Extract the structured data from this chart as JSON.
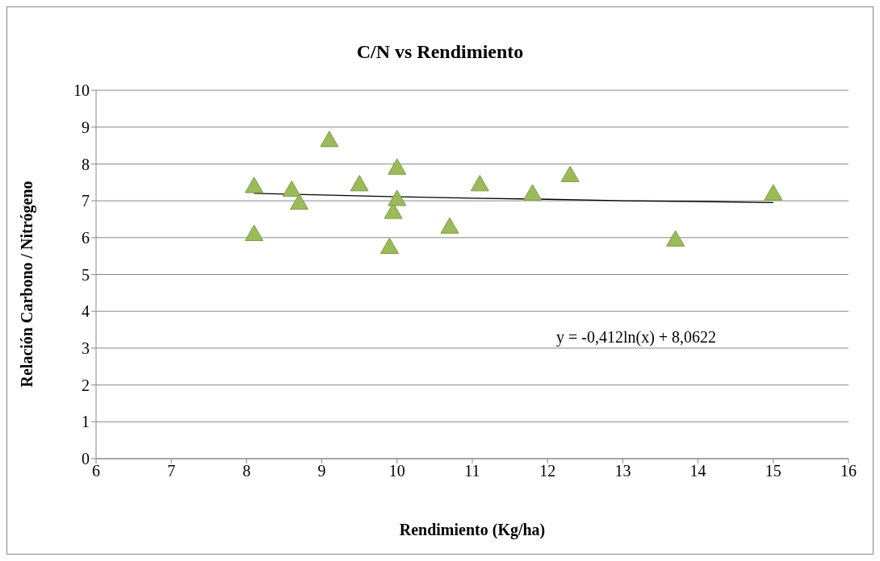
{
  "chart_data": {
    "type": "scatter",
    "title": "C/N vs Rendimiento",
    "xlabel": "Rendimiento (Kg/ha)",
    "ylabel": "Relación Carbono / Nitrógeno",
    "xlim": [
      6,
      16
    ],
    "xticks": [
      6,
      7,
      8,
      9,
      10,
      11,
      12,
      13,
      14,
      15,
      16
    ],
    "ylim": [
      0,
      10
    ],
    "yticks": [
      0,
      1,
      2,
      3,
      4,
      5,
      6,
      7,
      8,
      9,
      10
    ],
    "grid": "y",
    "legend": false,
    "marker": "triangle",
    "series": [
      {
        "color": "#9bbb59",
        "x": [
          8.1,
          8.1,
          8.6,
          8.7,
          9.1,
          9.5,
          9.9,
          9.95,
          10.0,
          10.0,
          10.7,
          11.1,
          11.8,
          12.3,
          13.7,
          15.0
        ],
        "values": [
          7.4,
          6.1,
          7.3,
          6.95,
          8.65,
          7.45,
          5.75,
          6.7,
          7.05,
          7.9,
          6.3,
          7.45,
          7.2,
          7.7,
          5.95,
          7.2
        ]
      },
      {
        "type": "line",
        "color": "#000000",
        "marker": "none",
        "line_style": "solid",
        "x": [
          8.1,
          9,
          10,
          11,
          12,
          13,
          14,
          15
        ],
        "values": [
          7.2,
          7.16,
          7.11,
          7.07,
          7.04,
          7.0,
          6.98,
          6.95
        ]
      }
    ],
    "annotations": [
      "y = -0,412ln(x) + 8,0622"
    ]
  }
}
